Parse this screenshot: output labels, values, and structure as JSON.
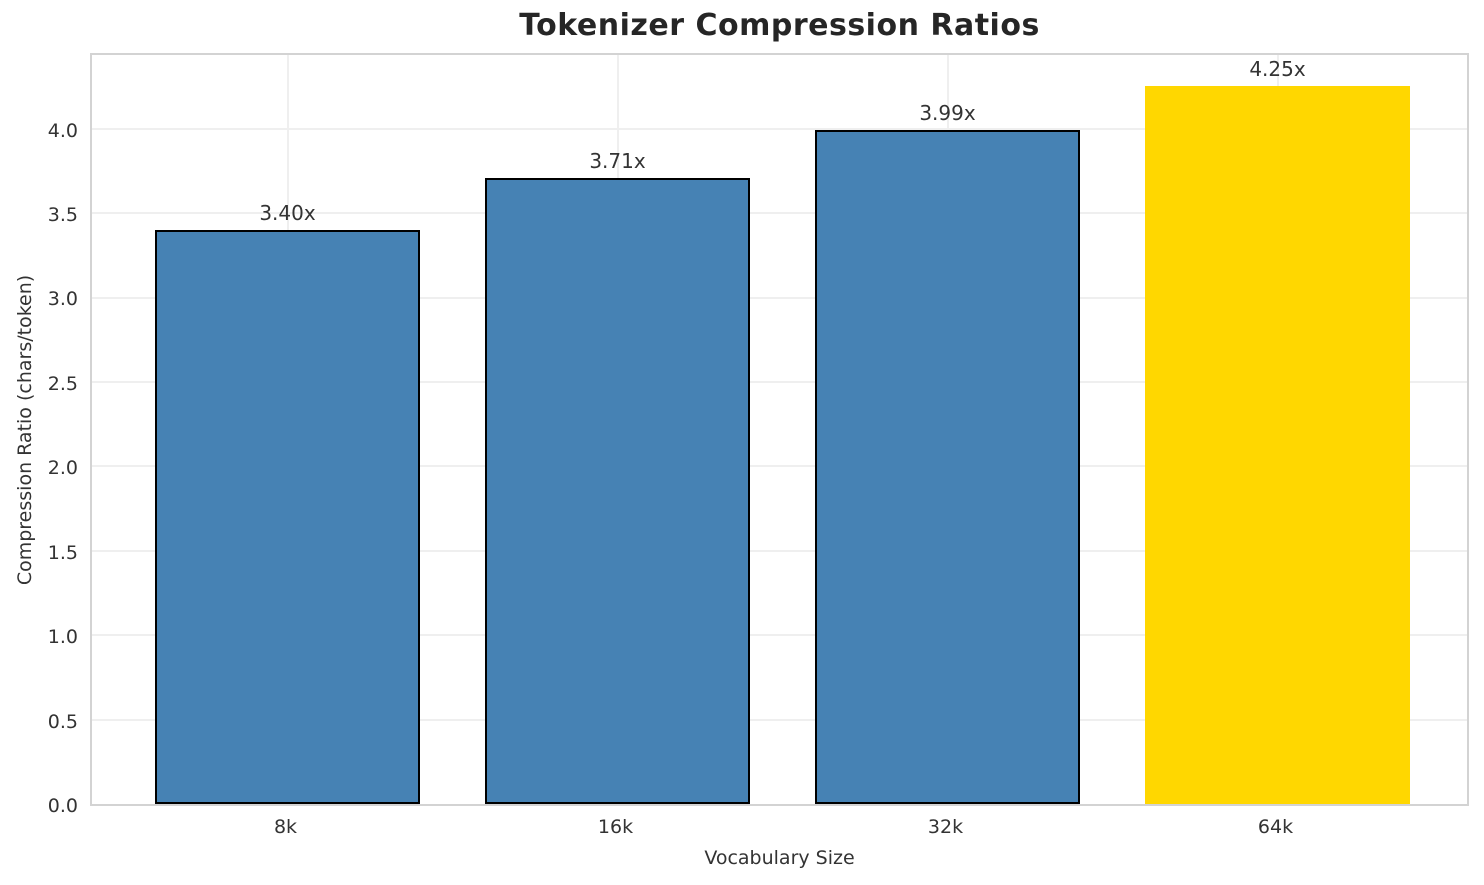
{
  "chart_data": {
    "type": "bar",
    "title": "Tokenizer Compression Ratios",
    "xlabel": "Vocabulary Size",
    "ylabel": "Compression Ratio (chars/token)",
    "categories": [
      "8k",
      "16k",
      "32k",
      "64k"
    ],
    "values": [
      3.4,
      3.71,
      3.99,
      4.25
    ],
    "bar_labels": [
      "3.40x",
      "3.71x",
      "3.99x",
      "4.25x"
    ],
    "bar_colors": [
      "#4682B4",
      "#4682B4",
      "#4682B4",
      "#FFD700"
    ],
    "bar_edge_colors": [
      "#000000",
      "#000000",
      "#000000",
      "none"
    ],
    "yticks": [
      "0.0",
      "0.5",
      "1.0",
      "1.5",
      "2.0",
      "2.5",
      "3.0",
      "3.5",
      "4.0"
    ],
    "ylim": [
      0,
      4.46
    ],
    "grid": true,
    "legend": "none",
    "colors": {
      "bar_default": "#4682B4",
      "bar_highlight": "#FFD700",
      "bar_edge": "#000000",
      "grid": "#efefef",
      "spine": "#d3d3d3",
      "text": "#333333",
      "title": "#262626"
    }
  }
}
